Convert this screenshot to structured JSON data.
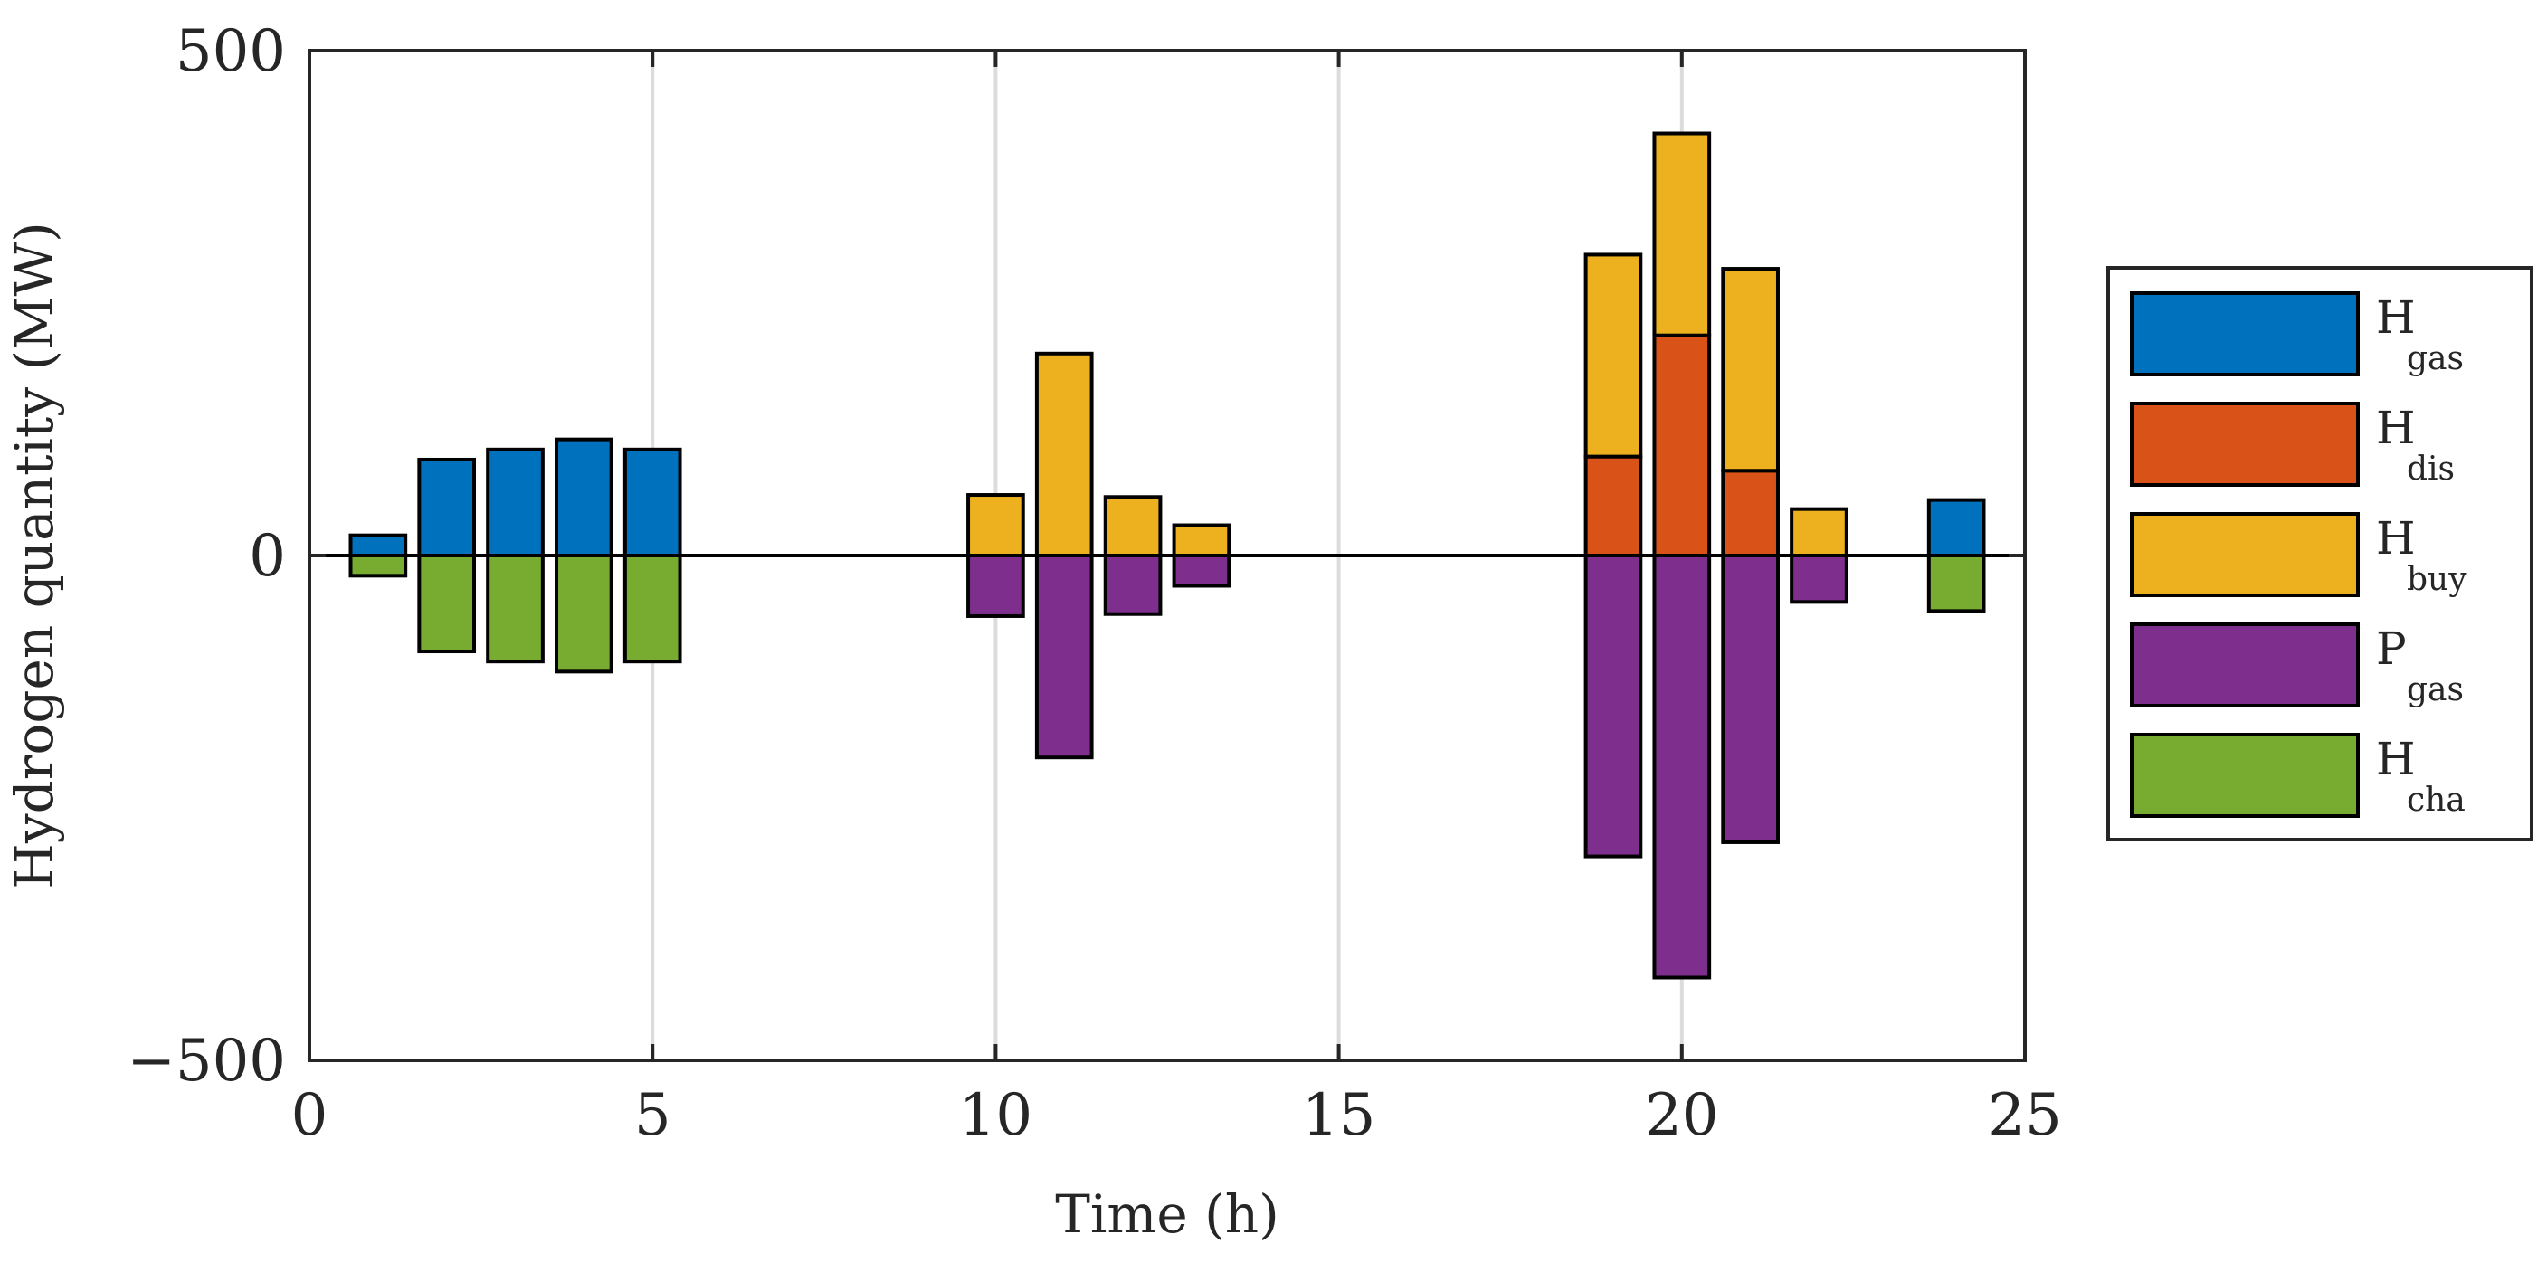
{
  "chart_data": {
    "type": "bar",
    "stacked": true,
    "xlabel": "Time (h)",
    "ylabel": "Hydrogen quantity (MW)",
    "xlim": [
      0,
      25
    ],
    "ylim": [
      -500,
      500
    ],
    "xticks": [
      0,
      5,
      10,
      15,
      20,
      25
    ],
    "yticks": [
      -500,
      0,
      500
    ],
    "xtick_labels": [
      "0",
      "5",
      "10",
      "15",
      "20",
      "25"
    ],
    "ytick_labels": [
      "−500",
      "0",
      "500"
    ],
    "grid": "vertical",
    "legend_position": "outside-right",
    "x": [
      1,
      2,
      3,
      4,
      5,
      10,
      11,
      12,
      13,
      19,
      20,
      21,
      22,
      24
    ],
    "series": [
      {
        "name": "H_gas",
        "label_main": "H",
        "label_sub": "gas",
        "color": "#0072BD",
        "values": [
          20,
          95,
          105,
          115,
          105,
          0,
          0,
          0,
          0,
          0,
          0,
          0,
          0,
          55
        ]
      },
      {
        "name": "H_dis",
        "label_main": "H",
        "label_sub": "dis",
        "color": "#D95319",
        "values": [
          0,
          0,
          0,
          0,
          0,
          0,
          0,
          0,
          0,
          98,
          218,
          84,
          0,
          0
        ]
      },
      {
        "name": "H_buy",
        "label_main": "H",
        "label_sub": "buy",
        "color": "#EDB120",
        "values": [
          0,
          0,
          0,
          0,
          0,
          60,
          200,
          58,
          30,
          200,
          200,
          200,
          46,
          0
        ]
      },
      {
        "name": "P_gas",
        "label_main": "P",
        "label_sub": "gas",
        "color": "#7E2F8E",
        "values": [
          0,
          0,
          0,
          0,
          0,
          -60,
          -200,
          -58,
          -30,
          -298,
          -418,
          -284,
          -46,
          0
        ]
      },
      {
        "name": "H_cha",
        "label_main": "H",
        "label_sub": "cha",
        "color": "#77AC30",
        "values": [
          -20,
          -95,
          -105,
          -115,
          -105,
          0,
          0,
          0,
          0,
          0,
          0,
          0,
          0,
          -55
        ]
      }
    ]
  }
}
